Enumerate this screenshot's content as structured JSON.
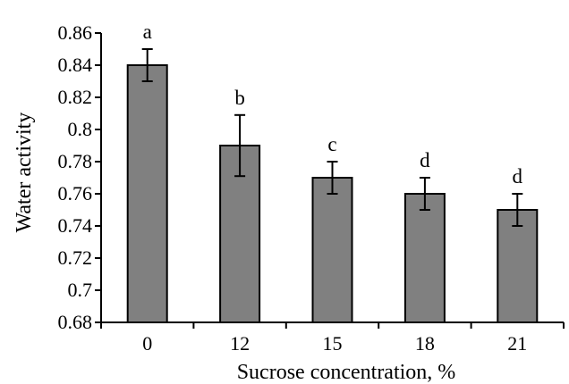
{
  "chart_data": {
    "type": "bar",
    "title": "",
    "xlabel": "Sucrose concentration, %",
    "ylabel": "Water activity",
    "categories": [
      "0",
      "12",
      "15",
      "18",
      "21"
    ],
    "values": [
      0.84,
      0.79,
      0.77,
      0.76,
      0.75
    ],
    "error": [
      0.01,
      0.019,
      0.01,
      0.01,
      0.01
    ],
    "significance_letters": [
      "a",
      "b",
      "c",
      "d",
      "d"
    ],
    "ylim": [
      0.68,
      0.86
    ],
    "yticks": [
      "0.68",
      "0.7",
      "0.72",
      "0.74",
      "0.76",
      "0.78",
      "0.8",
      "0.82",
      "0.84",
      "0.86"
    ],
    "grid": false,
    "bar_color": "#808080"
  }
}
